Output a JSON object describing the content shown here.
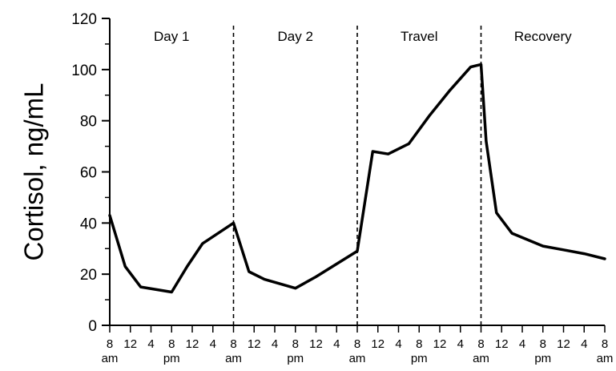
{
  "chart_data": {
    "type": "line",
    "title": "",
    "xlabel": "",
    "ylabel": "Cortisol, ng/mL",
    "ylim": [
      0,
      120
    ],
    "xlim": [
      0,
      96
    ],
    "grid": false,
    "yticks": [
      0,
      20,
      40,
      60,
      80,
      100,
      120
    ],
    "xticks": [
      {
        "x": 0,
        "label": "8",
        "sub": "am"
      },
      {
        "x": 4,
        "label": "12",
        "sub": ""
      },
      {
        "x": 8,
        "label": "4",
        "sub": ""
      },
      {
        "x": 12,
        "label": "8",
        "sub": "pm"
      },
      {
        "x": 16,
        "label": "12",
        "sub": ""
      },
      {
        "x": 20,
        "label": "4",
        "sub": ""
      },
      {
        "x": 24,
        "label": "8",
        "sub": "am"
      },
      {
        "x": 28,
        "label": "12",
        "sub": ""
      },
      {
        "x": 32,
        "label": "4",
        "sub": ""
      },
      {
        "x": 36,
        "label": "8",
        "sub": "pm"
      },
      {
        "x": 40,
        "label": "12",
        "sub": ""
      },
      {
        "x": 44,
        "label": "4",
        "sub": ""
      },
      {
        "x": 48,
        "label": "8",
        "sub": "am"
      },
      {
        "x": 52,
        "label": "12",
        "sub": ""
      },
      {
        "x": 56,
        "label": "4",
        "sub": ""
      },
      {
        "x": 60,
        "label": "8",
        "sub": "pm"
      },
      {
        "x": 64,
        "label": "12",
        "sub": ""
      },
      {
        "x": 68,
        "label": "4",
        "sub": ""
      },
      {
        "x": 72,
        "label": "8",
        "sub": "am"
      },
      {
        "x": 76,
        "label": "12",
        "sub": ""
      },
      {
        "x": 80,
        "label": "4",
        "sub": ""
      },
      {
        "x": 84,
        "label": "8",
        "sub": "pm"
      },
      {
        "x": 88,
        "label": "12",
        "sub": ""
      },
      {
        "x": 92,
        "label": "4",
        "sub": ""
      },
      {
        "x": 96,
        "label": "8",
        "sub": "am"
      }
    ],
    "segments": [
      {
        "label": "Day 1",
        "x_start": 0,
        "x_end": 24
      },
      {
        "label": "Day 2",
        "x_start": 24,
        "x_end": 48
      },
      {
        "label": "Travel",
        "x_start": 48,
        "x_end": 72
      },
      {
        "label": "Recovery",
        "x_start": 72,
        "x_end": 96
      }
    ],
    "dividers_x": [
      24,
      48,
      72
    ],
    "series": [
      {
        "x": [
          0,
          3,
          6,
          12,
          15,
          18,
          24,
          27,
          30,
          36,
          40,
          48,
          51,
          54,
          58,
          62,
          66,
          70,
          72,
          73,
          75,
          78,
          84,
          88,
          92,
          96
        ],
        "y": [
          43,
          23,
          15,
          13,
          23,
          32,
          40,
          21,
          18,
          14.5,
          19,
          29,
          68,
          67,
          71,
          82,
          92,
          101,
          102,
          72,
          44,
          36,
          31,
          29.5,
          28,
          26
        ]
      }
    ]
  }
}
